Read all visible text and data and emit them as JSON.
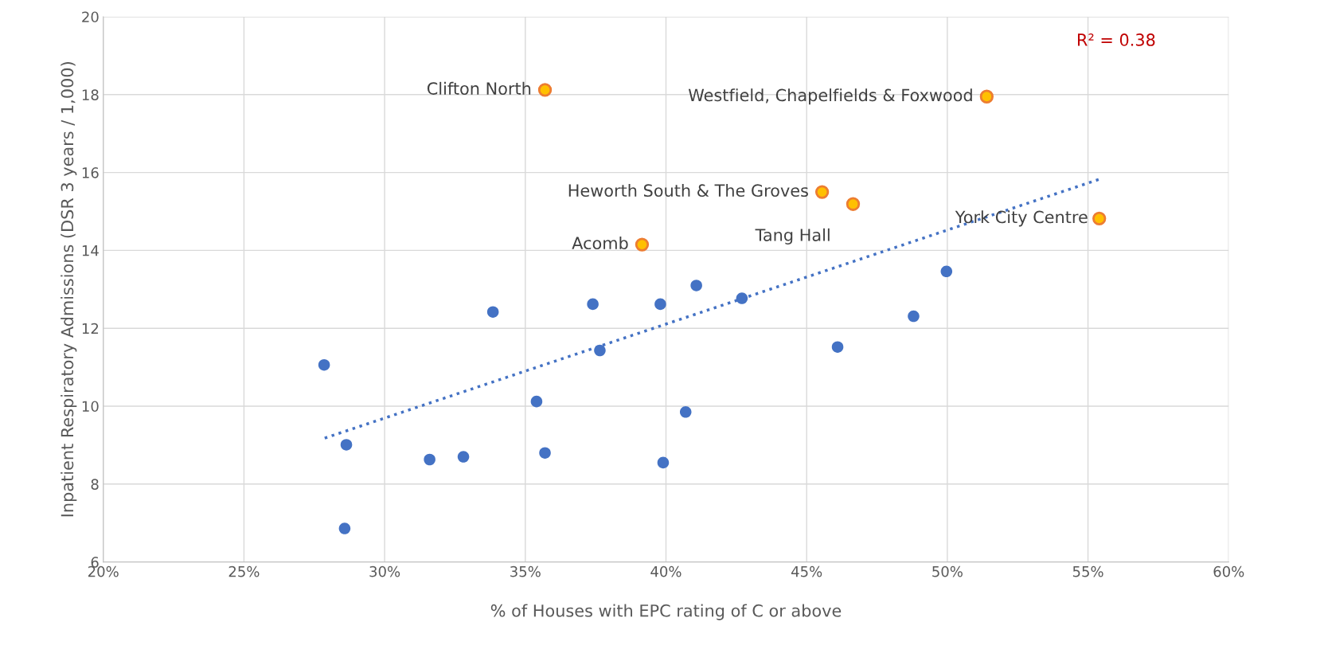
{
  "chart_data": {
    "type": "scatter",
    "xlabel": "% of Houses with EPC rating of C or above",
    "ylabel": "Inpatient Respiratory Admissions (DSR 3 years / 1,000)",
    "series": [
      {
        "color": "#4472c4",
        "x": [
          27.85,
          28.64,
          28.58,
          31.6,
          32.8,
          33.85,
          35.4,
          35.7,
          37.4,
          37.65,
          39.8,
          39.9,
          40.7,
          41.08,
          42.7,
          46.1,
          48.8,
          49.97
        ],
        "values": [
          11.06,
          9.01,
          6.86,
          8.63,
          8.7,
          12.42,
          10.12,
          8.8,
          12.62,
          11.43,
          12.62,
          8.55,
          9.85,
          13.1,
          12.77,
          11.52,
          12.31,
          13.46
        ]
      },
      {
        "color": "#ffc000",
        "x": [
          35.7,
          51.4,
          45.55,
          46.65,
          55.4,
          39.15
        ],
        "values": [
          18.12,
          17.95,
          15.5,
          15.19,
          14.82,
          14.15
        ]
      },
      {
        "type": "line",
        "color": "#4472c4",
        "line_style": "dotted",
        "marker": "none",
        "x": [
          27.87,
          55.5
        ],
        "values": [
          9.18,
          15.85
        ]
      }
    ],
    "annotations": [
      {
        "text": "Clifton North",
        "x": 35.7,
        "y": 18.12
      },
      {
        "text": "Westfield, Chapelfields & Foxwood",
        "x": 51.4,
        "y": 17.95
      },
      {
        "text": "Heworth South & The Groves",
        "x": 45.55,
        "y": 15.5
      },
      {
        "text": "Tang Hall",
        "x": 46.65,
        "y": 15.19
      },
      {
        "text": "York City Centre",
        "x": 55.4,
        "y": 14.82
      },
      {
        "text": "Acomb",
        "x": 39.15,
        "y": 14.15
      },
      "R² = 0.38"
    ],
    "xlim": [
      20,
      60
    ],
    "xticks": [
      {
        "value": 20,
        "label": "20%"
      },
      {
        "value": 25,
        "label": "25%"
      },
      {
        "value": 30,
        "label": "30%"
      },
      {
        "value": 35,
        "label": "35%"
      },
      {
        "value": 40,
        "label": "40%"
      },
      {
        "value": 45,
        "label": "45%"
      },
      {
        "value": 50,
        "label": "50%"
      },
      {
        "value": 55,
        "label": "55%"
      },
      {
        "value": 60,
        "label": "60%"
      }
    ],
    "ylim": [
      6,
      20
    ],
    "yticks": [
      6,
      8,
      10,
      12,
      14,
      16,
      18,
      20
    ],
    "grid": true,
    "marker": "circle"
  }
}
